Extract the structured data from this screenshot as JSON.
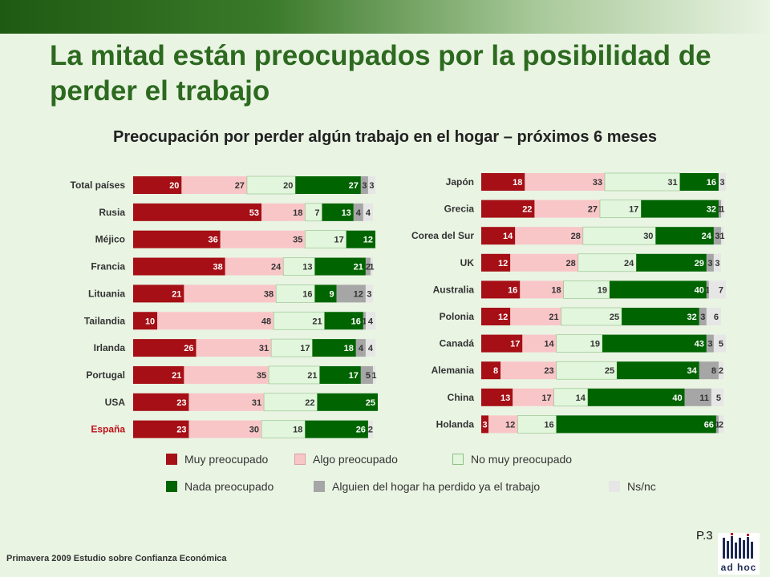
{
  "slide": {
    "title": "La mitad están preocupados por la posibilidad de perder el trabajo",
    "subtitle": "Preocupación por perder algún trabajo en el hogar – próximos 6 meses",
    "footer": "Primavera 2009 Estudio sobre Confianza Económica",
    "page": "P.3",
    "logo_text": "ad hoc"
  },
  "colors": {
    "background": "#e9f4e3",
    "title": "#2d6a20",
    "highlight_label": "#c0121c",
    "series": [
      "#a50f15",
      "#f9c6c8",
      "#e1f6dc",
      "#006400",
      "#a6a6a6",
      "#e6e6e6"
    ]
  },
  "legend": {
    "items": [
      "Muy preocupado",
      "Algo preocupado",
      "No muy preocupado",
      "Nada preocupado",
      "Alguien del hogar ha perdido ya el trabajo",
      "Ns/nc"
    ]
  },
  "chart_data": [
    {
      "type": "bar",
      "orientation": "horizontal",
      "stacked": true,
      "categories": [
        "Total países",
        "Rusia",
        "Méjico",
        "Francia",
        "Lituania",
        "Tailandia",
        "Irlanda",
        "Portugal",
        "USA",
        "España"
      ],
      "highlight_category": "España",
      "series": [
        {
          "name": "Muy preocupado",
          "values": [
            20,
            53,
            36,
            38,
            21,
            10,
            26,
            21,
            23,
            23
          ]
        },
        {
          "name": "Algo preocupado",
          "values": [
            27,
            18,
            35,
            24,
            38,
            48,
            31,
            35,
            31,
            30
          ]
        },
        {
          "name": "No muy preocupado",
          "values": [
            20,
            7,
            17,
            13,
            16,
            21,
            17,
            21,
            22,
            18
          ]
        },
        {
          "name": "Nada preocupado",
          "values": [
            27,
            13,
            12,
            21,
            9,
            16,
            18,
            17,
            25,
            26
          ]
        },
        {
          "name": "Alguien del hogar ha perdido ya el trabajo",
          "values": [
            3,
            4,
            null,
            2,
            12,
            1,
            4,
            5,
            null,
            null
          ]
        },
        {
          "name": "Ns/nc",
          "values": [
            3,
            4,
            null,
            1,
            3,
            4,
            4,
            1,
            null,
            2
          ]
        }
      ],
      "xlim": [
        0,
        100
      ]
    },
    {
      "type": "bar",
      "orientation": "horizontal",
      "stacked": true,
      "categories": [
        "Japón",
        "Grecia",
        "Corea del Sur",
        "UK",
        "Australia",
        "Polonia",
        "Canadá",
        "Alemania",
        "China",
        "Holanda"
      ],
      "series": [
        {
          "name": "Muy preocupado",
          "values": [
            18,
            22,
            14,
            12,
            16,
            12,
            17,
            8,
            13,
            3
          ]
        },
        {
          "name": "Algo preocupado",
          "values": [
            33,
            27,
            28,
            28,
            18,
            21,
            14,
            23,
            17,
            12
          ]
        },
        {
          "name": "No muy preocupado",
          "values": [
            31,
            17,
            30,
            24,
            19,
            25,
            19,
            25,
            14,
            16
          ]
        },
        {
          "name": "Nada preocupado",
          "values": [
            16,
            32,
            24,
            29,
            40,
            32,
            43,
            34,
            40,
            66
          ]
        },
        {
          "name": "Alguien del hogar ha perdido ya el trabajo",
          "values": [
            null,
            1,
            3,
            3,
            1,
            3,
            3,
            8,
            11,
            1
          ]
        },
        {
          "name": "Ns/nc",
          "values": [
            3,
            1,
            1,
            3,
            7,
            6,
            5,
            2,
            5,
            2
          ]
        }
      ],
      "xlim": [
        0,
        100
      ]
    }
  ]
}
